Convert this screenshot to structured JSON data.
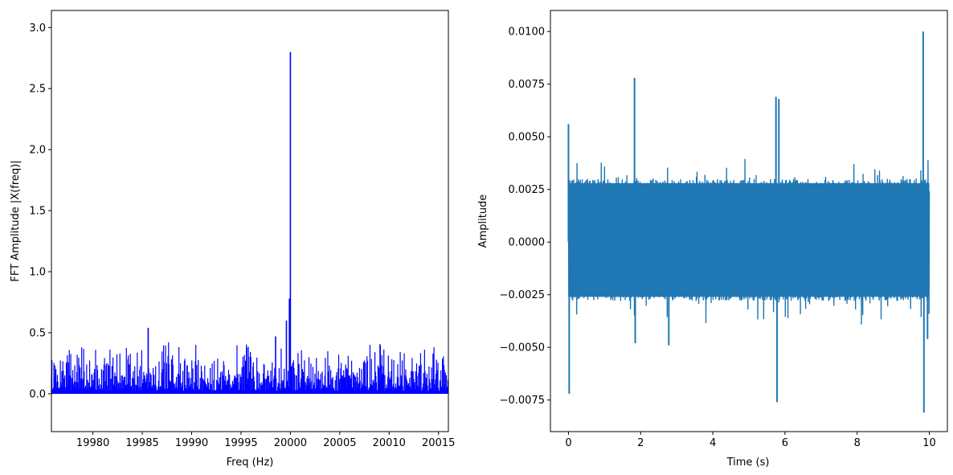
{
  "chart_data": [
    {
      "type": "bar",
      "title": "",
      "xlabel": "Freq (Hz)",
      "ylabel": "FFT Amplitude |X(freq)|",
      "xlim": [
        19975.8,
        20016.0
      ],
      "ylim": [
        -0.31,
        3.14
      ],
      "grid": false,
      "color": "#0000ff",
      "x_ticks": [
        19980,
        19985,
        19990,
        19995,
        20000,
        20005,
        20010,
        20015
      ],
      "y_ticks": [
        0.0,
        0.5,
        1.0,
        1.5,
        2.0,
        2.5,
        3.0
      ],
      "x_tick_labels": [
        "19980",
        "19985",
        "19990",
        "19995",
        "20000",
        "20005",
        "20010",
        "20015"
      ],
      "y_tick_labels": [
        "0.0",
        "0.5",
        "1.0",
        "1.5",
        "2.0",
        "2.5",
        "3.0"
      ],
      "peaks": [
        {
          "x": 20000.0,
          "y": 2.8
        },
        {
          "x": 19999.9,
          "y": 0.78
        },
        {
          "x": 19999.6,
          "y": 0.6
        },
        {
          "x": 19985.6,
          "y": 0.54
        },
        {
          "x": 19998.5,
          "y": 0.47
        }
      ],
      "noise_floor_max": 0.5,
      "noise_points": 800,
      "seed": 7
    },
    {
      "type": "line",
      "title": "",
      "xlabel": "Time (s)",
      "ylabel": "Amplitude",
      "xlim": [
        -0.5,
        10.5
      ],
      "ylim": [
        -0.009,
        0.011
      ],
      "grid": false,
      "color": "#1f77b4",
      "x_ticks": [
        0,
        2,
        4,
        6,
        8,
        10
      ],
      "y_ticks": [
        -0.0075,
        -0.005,
        -0.0025,
        0.0,
        0.0025,
        0.005,
        0.0075,
        0.01
      ],
      "x_tick_labels": [
        "0",
        "2",
        "4",
        "6",
        "8",
        "10"
      ],
      "y_tick_labels": [
        "−0.0075",
        "−0.0050",
        "−0.0025",
        "0.0000",
        "0.0025",
        "0.0050",
        "0.0075",
        "0.0100"
      ],
      "band": [
        -0.0028,
        0.003
      ],
      "spikes": [
        {
          "x": 0.0,
          "y": 0.0056
        },
        {
          "x": 0.02,
          "y": -0.0072
        },
        {
          "x": 1.83,
          "y": 0.0078
        },
        {
          "x": 1.85,
          "y": -0.0048
        },
        {
          "x": 2.78,
          "y": -0.0049
        },
        {
          "x": 5.75,
          "y": 0.0069
        },
        {
          "x": 5.78,
          "y": -0.0076
        },
        {
          "x": 5.83,
          "y": 0.0068
        },
        {
          "x": 9.83,
          "y": 0.01
        },
        {
          "x": 9.85,
          "y": -0.0081
        },
        {
          "x": 9.95,
          "y": -0.0046
        }
      ],
      "n_points": 1100,
      "seed": 11
    }
  ]
}
